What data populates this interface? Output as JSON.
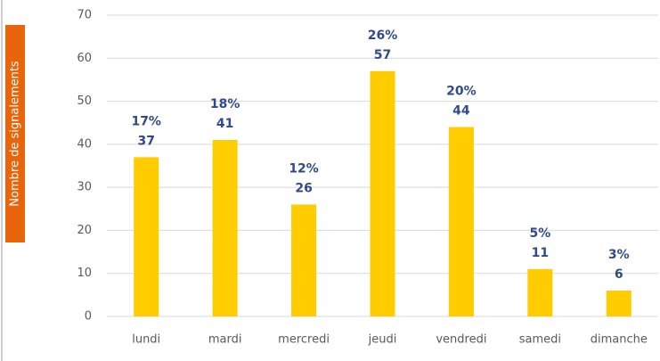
{
  "chart_data": {
    "type": "bar",
    "y_label": "Nombre de signalements",
    "categories": [
      "lundi",
      "mardi",
      "mercredi",
      "jeudi",
      "vendredi",
      "samedi",
      "dimanche"
    ],
    "values": [
      37,
      41,
      26,
      57,
      44,
      11,
      6
    ],
    "percent_labels": [
      "17%",
      "18%",
      "12%",
      "26%",
      "20%",
      "5%",
      "3%"
    ],
    "color": "#ffcc00",
    "label_color": "#2f4b8a",
    "ylim": [
      0,
      70
    ],
    "yticks": [
      0,
      10,
      20,
      30,
      40,
      50,
      60,
      70
    ],
    "grid": true
  }
}
